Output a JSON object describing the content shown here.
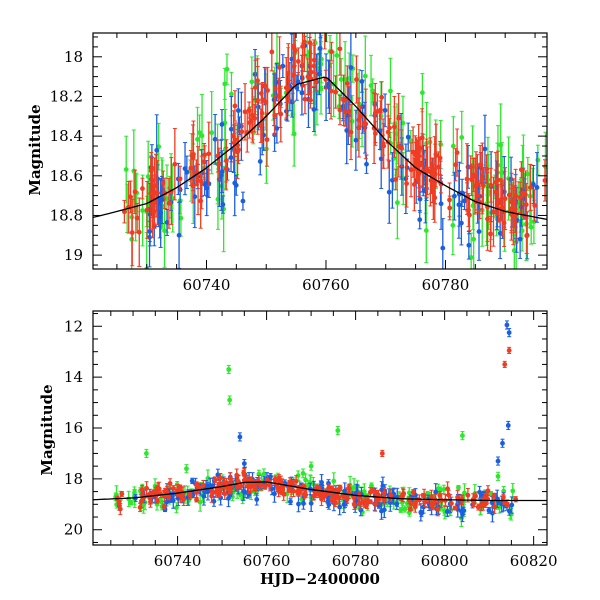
{
  "chart_data": [
    {
      "type": "scatter",
      "panel": "top",
      "xlabel": "",
      "ylabel": "Magnitude",
      "xlim": [
        60721,
        60797
      ],
      "ylim": [
        19.07,
        17.88
      ],
      "y_inverted": true,
      "x_ticks": [
        60740,
        60760,
        60780
      ],
      "y_ticks": [
        18,
        18.2,
        18.4,
        18.6,
        18.8,
        19
      ],
      "grid": false,
      "series": [
        {
          "color": "#2ee82e",
          "x_range": [
            60726,
            60797
          ],
          "y_mean": 18.62,
          "y_scatter": 0.22,
          "errorbar_mean": 0.12,
          "count": 150
        },
        {
          "color": "#1a5fe0",
          "x_range": [
            60730,
            60797
          ],
          "y_mean": 18.68,
          "y_scatter": 0.2,
          "errorbar_mean": 0.1,
          "count": 150
        },
        {
          "color": "#f03c22",
          "x_range": [
            60726,
            60797
          ],
          "y_mean": 18.58,
          "y_scatter": 0.14,
          "errorbar_mean": 0.1,
          "count": 210
        }
      ],
      "model_curve": {
        "color": "#000000",
        "x": [
          60721,
          60725,
          60730,
          60735,
          60740,
          60745,
          60750,
          60755,
          60760,
          60765,
          60770,
          60775,
          60780,
          60785,
          60790,
          60797
        ],
        "y": [
          18.81,
          18.78,
          18.74,
          18.66,
          18.56,
          18.44,
          18.3,
          18.14,
          18.1,
          18.25,
          18.42,
          18.56,
          18.65,
          18.73,
          18.78,
          18.82
        ]
      }
    },
    {
      "type": "scatter",
      "panel": "bottom",
      "xlabel": "HJD−2400000",
      "ylabel": "Magnitude",
      "xlim": [
        60721,
        60823
      ],
      "ylim": [
        20.6,
        11.4
      ],
      "y_inverted": true,
      "x_ticks": [
        60740,
        60760,
        60780,
        60800,
        60820
      ],
      "y_ticks": [
        12,
        14,
        16,
        18,
        20
      ],
      "grid": false,
      "series": [
        {
          "color": "#2ee82e",
          "x_range": [
            60726,
            60816
          ],
          "y_mean": 18.9,
          "y_scatter": 0.45,
          "errorbar_mean": 0.2,
          "count": 170,
          "outliers": [
            {
              "x": 60751.5,
              "y": 13.7
            },
            {
              "x": 60751.7,
              "y": 14.9
            },
            {
              "x": 60733,
              "y": 17.0
            },
            {
              "x": 60770,
              "y": 17.5
            },
            {
              "x": 60776,
              "y": 16.1
            },
            {
              "x": 60804,
              "y": 16.3
            },
            {
              "x": 60812,
              "y": 17.9
            },
            {
              "x": 60742,
              "y": 17.6
            }
          ]
        },
        {
          "color": "#1a5fe0",
          "x_range": [
            60726,
            60816
          ],
          "y_mean": 19.0,
          "y_scatter": 0.4,
          "errorbar_mean": 0.2,
          "count": 170,
          "outliers": [
            {
              "x": 60814,
              "y": 11.95
            },
            {
              "x": 60814.5,
              "y": 12.25
            },
            {
              "x": 60814.3,
              "y": 15.9
            },
            {
              "x": 60813,
              "y": 16.6
            },
            {
              "x": 60754,
              "y": 16.35
            },
            {
              "x": 60755,
              "y": 17.4
            },
            {
              "x": 60812,
              "y": 17.3
            }
          ]
        },
        {
          "color": "#f03c22",
          "x_range": [
            60726,
            60816
          ],
          "y_mean": 18.8,
          "y_scatter": 0.28,
          "errorbar_mean": 0.15,
          "count": 230,
          "outliers": [
            {
              "x": 60813.5,
              "y": 13.5
            },
            {
              "x": 60814.5,
              "y": 12.95
            },
            {
              "x": 60786,
              "y": 17.0
            }
          ]
        }
      ],
      "model_curve": {
        "color": "#000000",
        "x": [
          60721,
          60730,
          60740,
          60750,
          60755,
          60760,
          60770,
          60780,
          60790,
          60800,
          60810,
          60823
        ],
        "y": [
          18.82,
          18.75,
          18.56,
          18.3,
          18.14,
          18.12,
          18.42,
          18.65,
          18.78,
          18.82,
          18.85,
          18.85
        ]
      }
    }
  ]
}
